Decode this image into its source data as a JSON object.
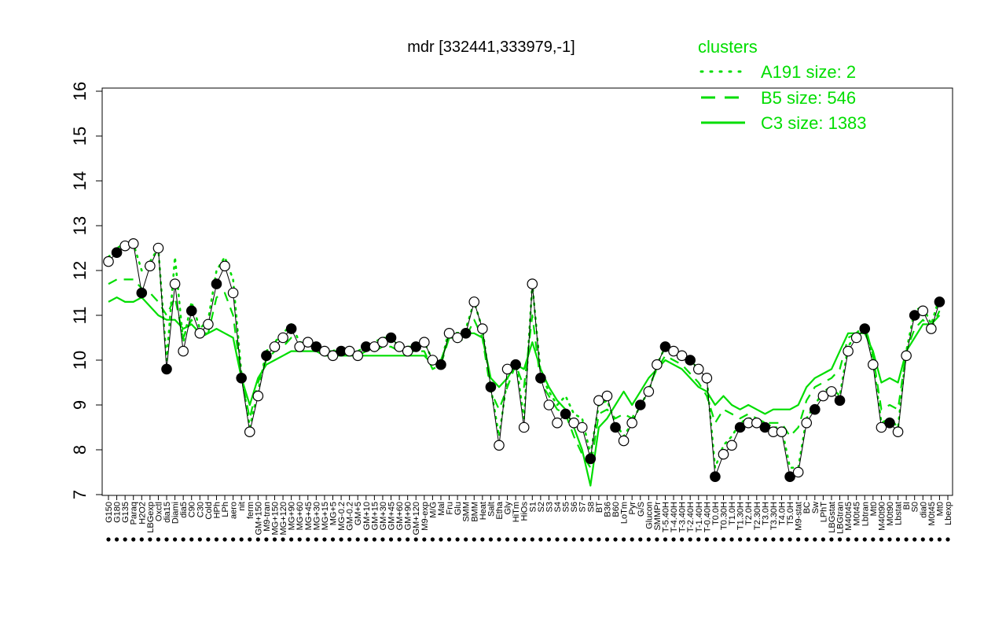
{
  "chart_data": {
    "type": "line",
    "title": "mdr [332441,333979,-1]",
    "xlabel": "",
    "ylabel": "",
    "ylim": [
      7,
      16
    ],
    "yticks": [
      7,
      8,
      9,
      10,
      11,
      12,
      13,
      14,
      15,
      16
    ],
    "grid": false,
    "legend": {
      "title": "clusters",
      "position": "top-right",
      "entries": [
        {
          "label": "A191 size: 2",
          "style": "dotted"
        },
        {
          "label": "B5 size: 546",
          "style": "dashed"
        },
        {
          "label": "C3 size: 1383",
          "style": "solid"
        }
      ]
    },
    "colors": {
      "clusters": "#00dd00",
      "line": "#000000",
      "point_open": "#ffffff",
      "point_filled": "#000000"
    },
    "x_tick_labels": [
      "G150",
      "G180",
      "G135",
      "Paraq",
      "H2O2",
      "LBGexp",
      "Oxctl",
      "dia15",
      "Diami",
      "dia5",
      "C90",
      "C30",
      "Cold",
      "HPh",
      "LPh",
      "aero",
      "nit",
      "ferm",
      "GM+150",
      "M9-tran",
      "MG+150",
      "MG+120",
      "MG+90",
      "MG+60",
      "MG+45",
      "MG+30",
      "MG+15",
      "MG+5",
      "MG-0.2",
      "GM-0.2",
      "GM+5",
      "GM+10",
      "GM+15",
      "GM+30",
      "GM+45",
      "GM+60",
      "GM+90",
      "GM+120",
      "M9-exp",
      "M/G",
      "Mal",
      "Fru",
      "Glu",
      "SMM",
      "BMM",
      "Heat",
      "Salt",
      "Etha",
      "Gly",
      "HiTm",
      "HiOs",
      "S1",
      "S2",
      "S3",
      "S4",
      "S5",
      "S6",
      "S7",
      "S8",
      "BT",
      "B36",
      "B60",
      "LoTm",
      "Pyr",
      "G/S",
      "Glucon",
      "SMMPr",
      "T-5.40H",
      "T-4.40H",
      "T-3.40H",
      "T-2.40H",
      "T-1.40H",
      "T-0.40H",
      "T0.0H",
      "T0.30H",
      "T1.0H",
      "T1.30H",
      "T2.0H",
      "T2.30H",
      "T3.0H",
      "T3.30H",
      "T4.0H",
      "T5.0H",
      "M9-stat",
      "BC",
      "Sw",
      "LPhT",
      "LBGstat",
      "LBGtran",
      "M40t45",
      "M0t45",
      "Lbtran",
      "Mt0",
      "M40t90",
      "M0t90",
      "Lbstat",
      "BI",
      "S0",
      "dia0",
      "M0t45",
      "Mt0",
      "Lbexp"
    ],
    "series": [
      {
        "style": "black-line",
        "values": [
          12.2,
          12.4,
          12.55,
          12.6,
          11.5,
          12.1,
          12.5,
          9.8,
          11.7,
          10.2,
          11.1,
          10.6,
          10.8,
          11.7,
          12.1,
          11.5,
          9.6,
          8.4,
          9.2,
          10.1,
          10.3,
          10.5,
          10.7,
          10.3,
          10.4,
          10.3,
          10.2,
          10.1,
          10.2,
          10.2,
          10.1,
          10.3,
          10.3,
          10.4,
          10.5,
          10.3,
          10.2,
          10.3,
          10.4,
          10.0,
          9.9,
          10.6,
          10.5,
          10.6,
          11.3,
          10.7,
          9.4,
          8.1,
          9.8,
          9.9,
          8.5,
          11.7,
          9.6,
          9.0,
          8.6,
          8.8,
          8.6,
          8.5,
          7.8,
          9.1,
          9.2,
          8.5,
          8.2,
          8.6,
          9.0,
          9.3,
          9.9,
          10.3,
          10.2,
          10.1,
          10.0,
          9.8,
          9.6,
          7.4,
          7.9,
          8.1,
          8.5,
          8.6,
          8.6,
          8.5,
          8.4,
          8.4,
          7.4,
          7.5,
          8.6,
          8.9,
          9.2,
          9.3,
          9.1,
          10.2,
          10.5,
          10.7,
          9.9,
          8.5,
          8.6,
          8.4,
          10.1,
          11.0,
          11.1,
          10.7,
          11.3
        ]
      },
      {
        "name": "C3 size: 1383",
        "style": "solid",
        "values": [
          11.3,
          11.4,
          11.3,
          11.3,
          11.4,
          11.2,
          11.0,
          10.9,
          10.9,
          10.7,
          10.8,
          10.6,
          10.6,
          10.7,
          10.6,
          10.5,
          9.6,
          9.0,
          9.6,
          9.9,
          10.0,
          10.1,
          10.2,
          10.2,
          10.2,
          10.2,
          10.1,
          10.1,
          10.1,
          10.1,
          10.1,
          10.1,
          10.1,
          10.1,
          10.1,
          10.1,
          10.1,
          10.1,
          10.1,
          9.9,
          10.0,
          10.5,
          10.5,
          10.6,
          10.6,
          10.5,
          9.6,
          9.4,
          9.6,
          9.9,
          9.8,
          10.4,
          9.8,
          9.4,
          9.1,
          8.9,
          8.5,
          8.0,
          7.2,
          8.5,
          8.7,
          9.0,
          9.3,
          9.0,
          9.3,
          9.6,
          9.8,
          10.0,
          9.9,
          9.8,
          9.6,
          9.4,
          9.3,
          9.0,
          9.2,
          9.0,
          8.9,
          9.0,
          8.9,
          8.8,
          8.9,
          8.9,
          8.9,
          9.0,
          9.4,
          9.6,
          9.7,
          9.8,
          10.2,
          10.6,
          10.6,
          10.6,
          10.2,
          9.5,
          9.6,
          9.5,
          10.2,
          10.5,
          10.8,
          10.8,
          11.0
        ]
      },
      {
        "name": "B5 size: 546",
        "style": "dashed",
        "values": [
          11.7,
          11.8,
          11.8,
          11.8,
          11.6,
          11.5,
          11.3,
          11.0,
          11.4,
          10.5,
          10.9,
          10.5,
          10.6,
          11.4,
          11.5,
          11.0,
          9.6,
          8.7,
          9.5,
          10.0,
          10.2,
          10.3,
          10.5,
          10.3,
          10.3,
          10.3,
          10.2,
          10.2,
          10.2,
          10.2,
          10.1,
          10.2,
          10.2,
          10.3,
          10.3,
          10.2,
          10.2,
          10.2,
          10.2,
          9.8,
          9.9,
          10.5,
          10.4,
          10.5,
          10.9,
          10.5,
          9.3,
          8.9,
          9.4,
          9.9,
          9.4,
          11.0,
          9.5,
          9.2,
          8.9,
          8.8,
          8.3,
          7.9,
          7.6,
          8.8,
          8.9,
          8.7,
          8.8,
          8.7,
          9.1,
          9.4,
          9.8,
          10.1,
          10.0,
          9.9,
          9.7,
          9.5,
          9.2,
          8.6,
          8.9,
          8.8,
          8.7,
          8.8,
          8.7,
          8.6,
          8.6,
          8.6,
          8.3,
          8.5,
          9.1,
          9.4,
          9.5,
          9.6,
          9.8,
          10.5,
          10.6,
          10.8,
          10.1,
          8.9,
          9.0,
          8.9,
          10.2,
          10.7,
          10.9,
          10.7,
          11.1
        ]
      },
      {
        "name": "A191 size: 2",
        "style": "dotted",
        "values": [
          12.3,
          12.5,
          12.6,
          12.6,
          12.0,
          12.2,
          12.5,
          10.0,
          12.3,
          10.4,
          11.3,
          10.7,
          10.9,
          12.0,
          12.3,
          11.8,
          9.7,
          8.5,
          9.3,
          10.2,
          10.4,
          10.6,
          10.8,
          10.4,
          10.4,
          10.3,
          10.2,
          10.2,
          10.3,
          10.2,
          10.2,
          10.3,
          10.4,
          10.5,
          10.5,
          10.3,
          10.3,
          10.3,
          10.4,
          10.0,
          9.9,
          10.7,
          10.6,
          10.7,
          11.3,
          10.7,
          9.4,
          8.3,
          9.6,
          10.0,
          8.7,
          11.7,
          9.7,
          9.3,
          9.0,
          9.2,
          8.8,
          8.7,
          7.9,
          9.0,
          9.1,
          8.6,
          8.3,
          8.6,
          9.0,
          9.3,
          9.9,
          10.3,
          10.2,
          10.1,
          10.0,
          9.8,
          9.6,
          7.6,
          8.1,
          8.3,
          8.6,
          8.7,
          8.7,
          8.6,
          8.5,
          8.5,
          7.6,
          7.6,
          8.7,
          9.0,
          9.3,
          9.4,
          9.2,
          10.3,
          10.6,
          10.8,
          10.0,
          8.6,
          8.7,
          8.5,
          10.2,
          11.1,
          11.2,
          10.8,
          11.4
        ]
      }
    ]
  }
}
